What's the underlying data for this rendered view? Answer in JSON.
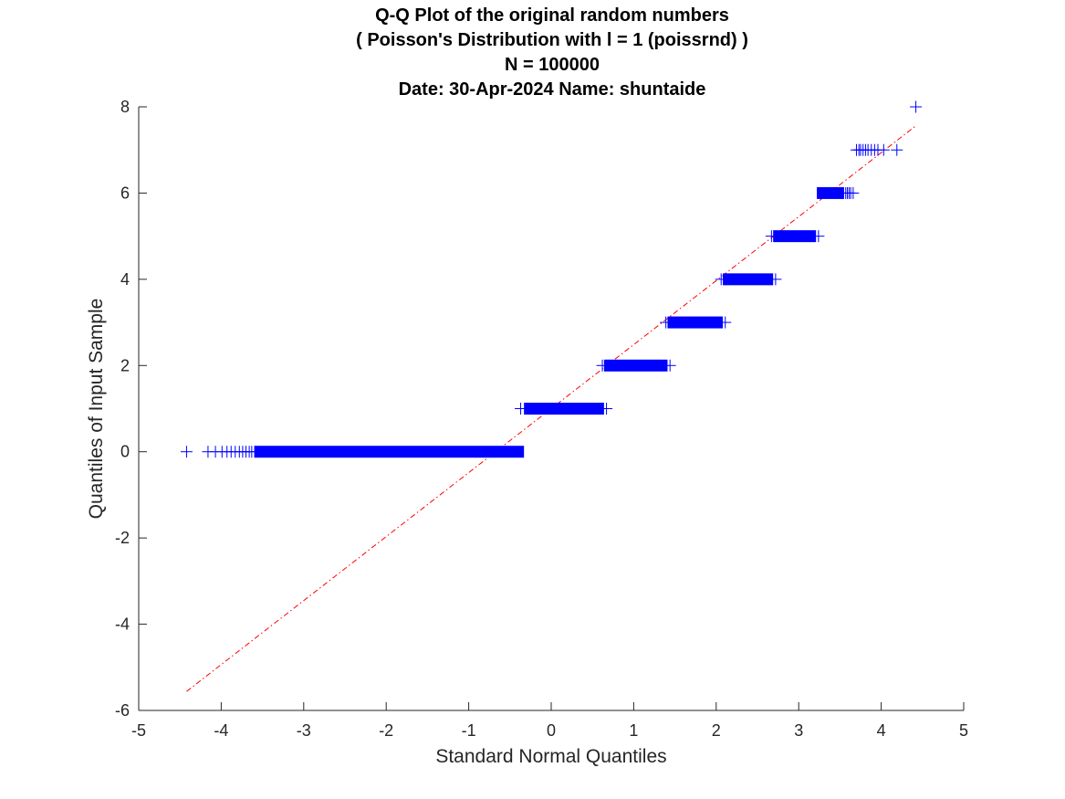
{
  "chart_data": {
    "type": "scatter",
    "title": [
      "Q-Q Plot of the original random numbers",
      "( Poisson's Distribution with l = 1 (poissrnd) )",
      "N = 100000",
      "Date: 30-Apr-2024 Name: shuntaide"
    ],
    "xlabel": "Standard Normal Quantiles",
    "ylabel": "Quantiles of Input Sample",
    "xlim": [
      -5,
      5
    ],
    "ylim": [
      -6,
      8
    ],
    "xticks": [
      "-5",
      "-4",
      "-3",
      "-2",
      "-1",
      "0",
      "1",
      "2",
      "3",
      "4",
      "5"
    ],
    "yticks": [
      "-6",
      "-4",
      "-2",
      "0",
      "2",
      "4",
      "6",
      "8"
    ],
    "grid": false,
    "colors": {
      "points": "#0000ff",
      "reference_line": "#ff0000",
      "axes": "#262626"
    },
    "series": [
      {
        "marker": "+",
        "clusters": [
          {
            "y": 0,
            "x_range": [
              -3.6,
              -0.33
            ],
            "outliers_x": [
              -4.42,
              -4.16,
              -4.07,
              -3.99,
              -3.93,
              -3.88,
              -3.83,
              -3.78,
              -3.74,
              -3.7,
              -3.66,
              -3.63
            ]
          },
          {
            "y": 1,
            "x_range": [
              -0.33,
              0.64
            ],
            "outliers_x": [
              -0.37,
              0.67
            ]
          },
          {
            "y": 2,
            "x_range": [
              0.64,
              1.41
            ],
            "outliers_x": [
              0.62,
              1.44
            ]
          },
          {
            "y": 3,
            "x_range": [
              1.41,
              2.08
            ],
            "outliers_x": [
              1.39,
              2.11
            ]
          },
          {
            "y": 4,
            "x_range": [
              2.08,
              2.69
            ],
            "outliers_x": [
              2.06,
              2.72
            ]
          },
          {
            "y": 5,
            "x_range": [
              2.69,
              3.21
            ],
            "outliers_x": [
              2.67,
              3.24
            ]
          },
          {
            "y": 6,
            "x_range": [
              3.22,
              3.55
            ],
            "outliers_x": [
              3.57,
              3.59,
              3.61,
              3.63,
              3.66
            ]
          },
          {
            "y": 7,
            "x_range": null,
            "outliers_x": [
              3.7,
              3.73,
              3.75,
              3.78,
              3.81,
              3.84,
              3.88,
              3.92,
              3.96,
              4.03,
              4.19
            ]
          },
          {
            "y": 8,
            "x_range": null,
            "outliers_x": [
              4.42
            ]
          }
        ]
      }
    ],
    "reference_line": {
      "style": "dash-dot",
      "x": [
        -4.42,
        4.42
      ],
      "y": [
        -5.56,
        7.56
      ]
    }
  }
}
